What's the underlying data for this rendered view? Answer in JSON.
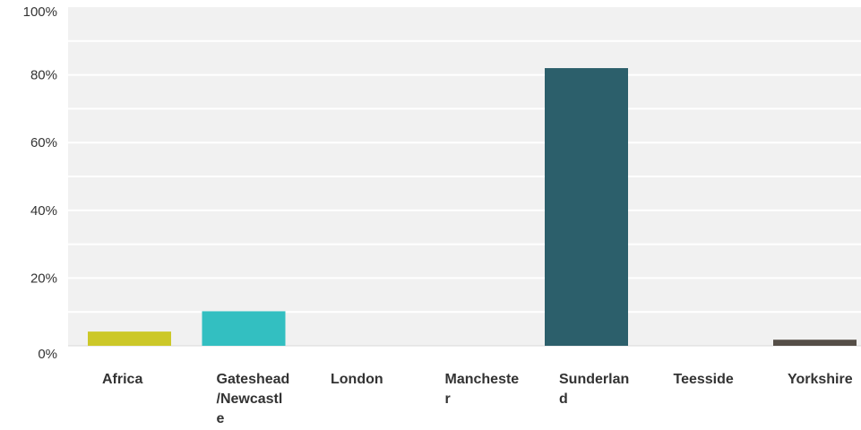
{
  "chart_data": {
    "type": "bar",
    "title": "",
    "xlabel": "",
    "ylabel": "",
    "categories": [
      "Africa",
      "Gateshead/Newcastle",
      "London",
      "Manchester",
      "Sunderland",
      "Teesside",
      "Yorkshire"
    ],
    "category_label_lines": [
      [
        "Africa"
      ],
      [
        "Gateshead",
        "/Newcastl",
        "e"
      ],
      [
        "London"
      ],
      [
        "Mancheste",
        "r"
      ],
      [
        "Sunderlan",
        "d"
      ],
      [
        "Teesside"
      ],
      [
        "Yorkshire"
      ]
    ],
    "values": [
      4.2,
      10.2,
      0,
      0,
      82.0,
      0,
      1.8
    ],
    "ylim": [
      0,
      100
    ],
    "yticks": [
      0,
      20,
      40,
      60,
      80,
      100
    ],
    "ytick_labels": [
      "0%",
      "20%",
      "40%",
      "60%",
      "80%",
      "100%"
    ],
    "grid": true,
    "legend": "none",
    "colors": {
      "Africa": "#ccc829",
      "Gateshead/Newcastle": "#33bfc1",
      "London": "#2c5f6b",
      "Manchester": "#2c5f6b",
      "Sunderland": "#2c5f6b",
      "Teesside": "#2c5f6b",
      "Yorkshire": "#554e47"
    },
    "plot_background": "#f1f1f1",
    "gridline_color": "#ffffff"
  }
}
